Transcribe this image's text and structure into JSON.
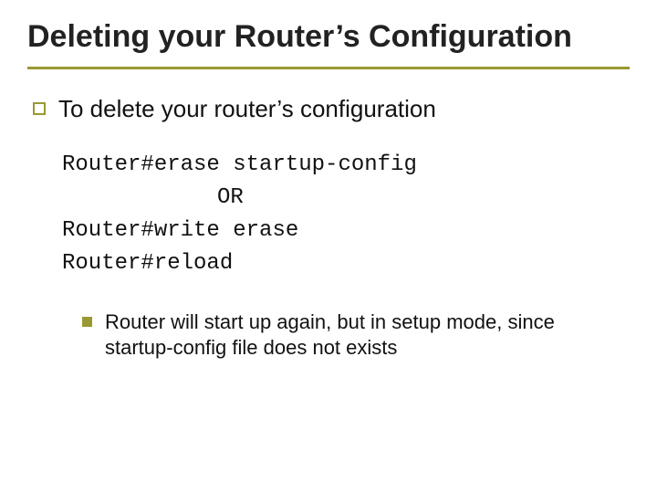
{
  "colors": {
    "accent": "#999933",
    "text": "#111111",
    "background": "#ffffff"
  },
  "title": "Deleting your Router’s Configuration",
  "main_bullet": "To delete your router’s configuration",
  "code": {
    "line1": "Router#erase startup-config",
    "or": "OR",
    "line2": "Router#write erase",
    "line3": "Router#reload"
  },
  "sub_bullet": "Router will start up again, but in setup mode, since startup-config file does not exists"
}
